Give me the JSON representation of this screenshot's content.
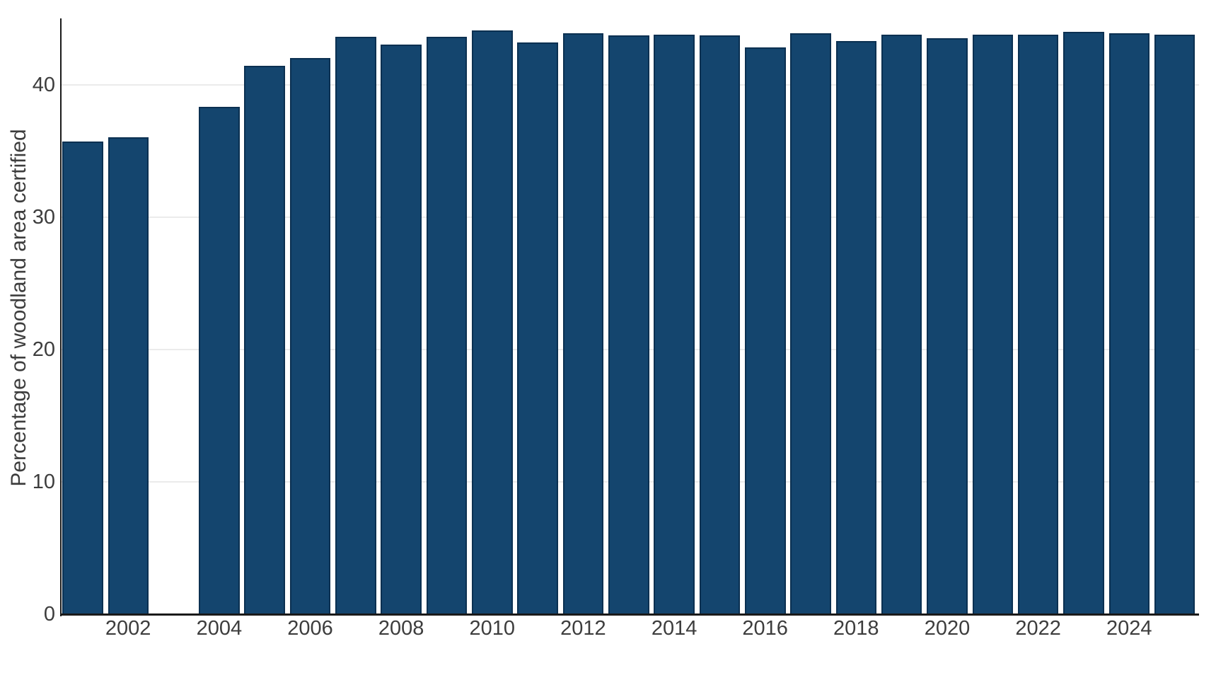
{
  "chart_data": {
    "type": "bar",
    "title": "",
    "xlabel": "",
    "ylabel": "Percentage of woodland area certified",
    "series_name": "Percentage of woodland area certified",
    "categories": [
      2001,
      2002,
      2003,
      2004,
      2005,
      2006,
      2007,
      2008,
      2009,
      2010,
      2011,
      2012,
      2013,
      2014,
      2015,
      2016,
      2017,
      2018,
      2019,
      2020,
      2021,
      2022,
      2023,
      2024,
      2025
    ],
    "values": [
      35.7,
      36.0,
      null,
      38.3,
      41.4,
      42.0,
      43.6,
      43.0,
      43.6,
      44.1,
      43.2,
      43.9,
      43.7,
      43.8,
      43.7,
      42.8,
      43.9,
      43.3,
      43.8,
      43.5,
      43.8,
      43.8,
      44.0,
      43.9,
      43.8
    ],
    "yticks": [
      0,
      10,
      20,
      30,
      40
    ],
    "xticks": [
      2002,
      2004,
      2006,
      2008,
      2010,
      2012,
      2014,
      2016,
      2018,
      2020,
      2022,
      2024
    ],
    "ylim": [
      0,
      45.0
    ],
    "grid": true,
    "legend": false,
    "colors": {
      "bar_fill": "#14456E",
      "bar_edge": "#0B3051",
      "gridline": "#EBEBEB",
      "axis": "#1A1A1A",
      "tick_label": "#3D3D3D",
      "background": "#FFFFFF"
    }
  }
}
